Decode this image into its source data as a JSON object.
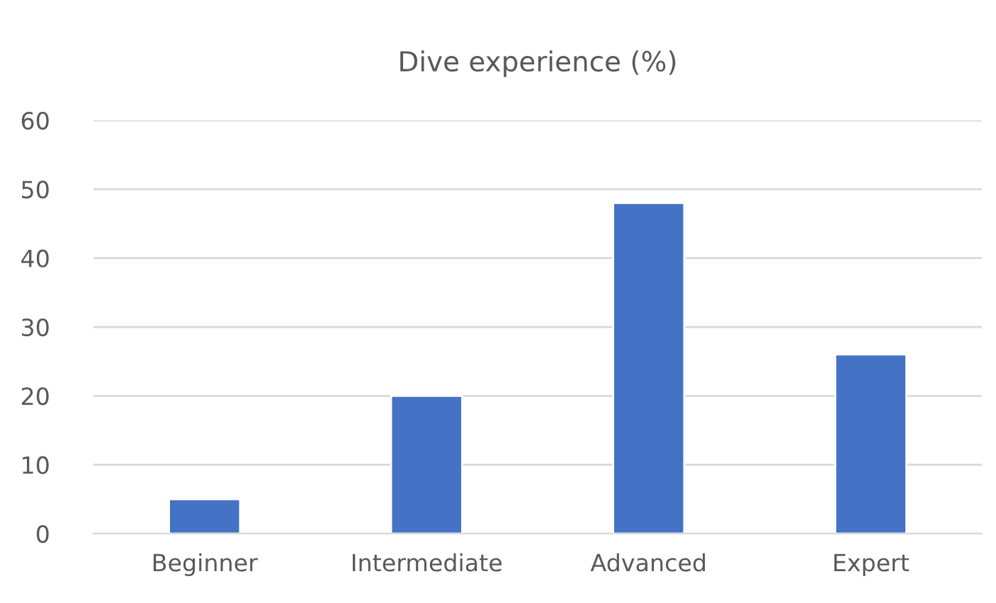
{
  "chart_data": {
    "type": "bar",
    "title": "Dive experience (%)",
    "categories": [
      "Beginner",
      "Intermediate",
      "Advanced",
      "Expert"
    ],
    "values": [
      5,
      20,
      48,
      26
    ],
    "color": "#4472c4",
    "ylim": [
      0,
      60
    ],
    "yticks": [
      0,
      10,
      20,
      30,
      40,
      50,
      60
    ],
    "grid": "y"
  }
}
